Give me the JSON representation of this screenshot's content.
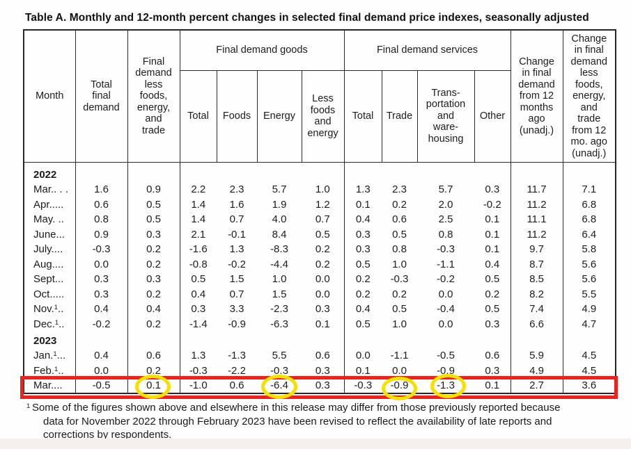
{
  "title": "Table A. Monthly and 12-month percent changes in selected final demand price indexes, seasonally adjusted",
  "table": {
    "header": {
      "month": "Month",
      "total_final_demand": "Total\nfinal\ndemand",
      "less_fet": "Final\ndemand\nless\nfoods,\nenergy,\nand\ntrade",
      "goods_group": "Final demand goods",
      "services_group": "Final demand services",
      "goods_cols": [
        "Total",
        "Foods",
        "Energy",
        "Less\nfoods\nand\nenergy"
      ],
      "services_cols": [
        "Total",
        "Trade",
        "Trans-\nportation\nand\nware-\nhousing",
        "Other"
      ],
      "chg_12mo": "Change\nin final\ndemand\nfrom 12\nmonths\nago\n(unadj.)",
      "chg_12mo_less": "Change\nin final\ndemand\nless\nfoods,\nenergy,\nand\ntrade\nfrom 12\nmo. ago\n(unadj.)"
    },
    "rows": [
      {
        "type": "year",
        "label": "2022"
      },
      {
        "type": "data",
        "pre": "Mar.. . .",
        "sup": "",
        "post": "",
        "values": [
          "1.6",
          "0.9",
          "2.2",
          "2.3",
          "5.7",
          "1.0",
          "1.3",
          "2.3",
          "5.7",
          "0.3",
          "11.7",
          "7.1"
        ]
      },
      {
        "type": "data",
        "pre": "Apr.....",
        "sup": "",
        "post": "",
        "values": [
          "0.6",
          "0.5",
          "1.4",
          "1.6",
          "1.9",
          "1.2",
          "0.1",
          "0.2",
          "2.0",
          "-0.2",
          "11.2",
          "6.8"
        ]
      },
      {
        "type": "data",
        "pre": "May. ..",
        "sup": "",
        "post": "",
        "values": [
          "0.8",
          "0.5",
          "1.4",
          "0.7",
          "4.0",
          "0.7",
          "0.4",
          "0.6",
          "2.5",
          "0.1",
          "11.1",
          "6.8"
        ]
      },
      {
        "type": "data",
        "pre": "June...",
        "sup": "",
        "post": "",
        "values": [
          "0.9",
          "0.3",
          "2.1",
          "-0.1",
          "8.4",
          "0.5",
          "0.3",
          "0.5",
          "0.8",
          "0.1",
          "11.2",
          "6.4"
        ]
      },
      {
        "type": "data",
        "pre": "July....",
        "sup": "",
        "post": "",
        "values": [
          "-0.3",
          "0.2",
          "-1.6",
          "1.3",
          "-8.3",
          "0.2",
          "0.3",
          "0.8",
          "-0.3",
          "0.1",
          "9.7",
          "5.8"
        ]
      },
      {
        "type": "data",
        "pre": "Aug....",
        "sup": "",
        "post": "",
        "values": [
          "0.0",
          "0.2",
          "-0.8",
          "-0.2",
          "-4.4",
          "0.2",
          "0.5",
          "1.0",
          "-1.1",
          "0.4",
          "8.7",
          "5.6"
        ]
      },
      {
        "type": "data",
        "pre": "Sept...",
        "sup": "",
        "post": "",
        "values": [
          "0.3",
          "0.3",
          "0.5",
          "1.5",
          "1.0",
          "0.0",
          "0.2",
          "-0.3",
          "-0.2",
          "0.5",
          "8.5",
          "5.6"
        ]
      },
      {
        "type": "data",
        "pre": "Oct.....",
        "sup": "",
        "post": "",
        "values": [
          "0.3",
          "0.2",
          "0.4",
          "0.7",
          "1.5",
          "0.0",
          "0.2",
          "0.2",
          "0.0",
          "0.2",
          "8.2",
          "5.5"
        ]
      },
      {
        "type": "data",
        "pre": "Nov.",
        "sup": "1",
        "post": "..",
        "values": [
          "0.4",
          "0.4",
          "0.3",
          "3.3",
          "-2.3",
          "0.3",
          "0.4",
          "0.5",
          "-0.4",
          "0.5",
          "7.4",
          "4.9"
        ]
      },
      {
        "type": "data",
        "pre": "Dec.",
        "sup": "1",
        "post": "..",
        "values": [
          "-0.2",
          "0.2",
          "-1.4",
          "-0.9",
          "-6.3",
          "0.1",
          "0.5",
          "1.0",
          "0.0",
          "0.3",
          "6.6",
          "4.7"
        ]
      },
      {
        "type": "year",
        "label": "2023"
      },
      {
        "type": "data",
        "pre": "Jan.",
        "sup": "1",
        "post": "...",
        "values": [
          "0.4",
          "0.6",
          "1.3",
          "-1.3",
          "5.5",
          "0.6",
          "0.0",
          "-1.1",
          "-0.5",
          "0.6",
          "5.9",
          "4.5"
        ]
      },
      {
        "type": "data",
        "pre": "Feb.",
        "sup": "1",
        "post": "..",
        "values": [
          "0.0",
          "0.2",
          "-0.3",
          "-2.2",
          "-0.3",
          "0.3",
          "0.1",
          "0.0",
          "-0.9",
          "0.3",
          "4.9",
          "4.5"
        ]
      },
      {
        "type": "data",
        "pre": "Mar....",
        "sup": "",
        "post": "",
        "highlighted": true,
        "values": [
          "-0.5",
          "0.1",
          "-1.0",
          "0.6",
          "-6.4",
          "0.3",
          "-0.3",
          "-0.9",
          "-1.3",
          "0.1",
          "2.7",
          "3.6"
        ]
      }
    ]
  },
  "highlight": {
    "box_color": "#e9231e",
    "circle_color": "#f6e003",
    "highlighted_row": "Mar 2023",
    "circled_values": [
      "0.1",
      "-6.4",
      "-0.9",
      "-1.3"
    ]
  },
  "footnote": {
    "sup": "1",
    "lines": [
      "Some of the figures shown above and elsewhere in this release may differ from those previously reported because",
      "data for November 2022 through February 2023 have been revised to reflect the availability of late reports and",
      "corrections by respondents."
    ]
  }
}
